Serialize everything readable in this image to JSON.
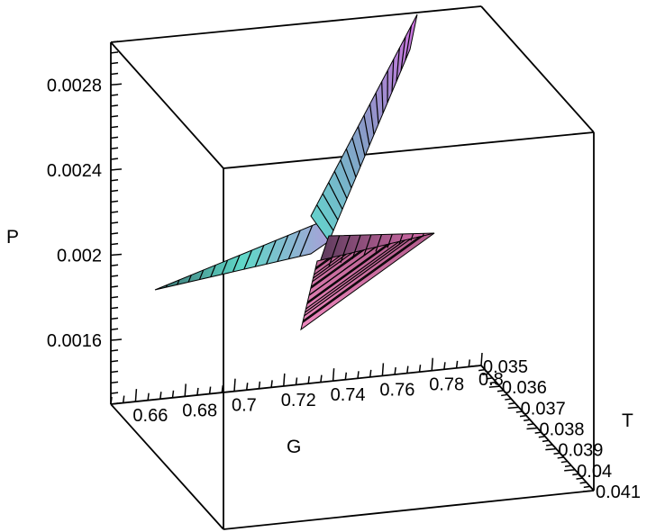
{
  "chart_data": {
    "type": "surface",
    "title": "",
    "xlabel": "G",
    "ylabel": "T",
    "zlabel": "P",
    "xlim": [
      0.65,
      0.8
    ],
    "ylim": [
      0.035,
      0.041
    ],
    "zlim": [
      0.0013,
      0.003
    ],
    "x_ticks": [
      "0.66",
      "0.68",
      "0.7",
      "0.72",
      "0.74",
      "0.76",
      "0.78",
      "0.8"
    ],
    "y_ticks": [
      "0.035",
      "0.036",
      "0.037",
      "0.038",
      "0.039",
      "0.04",
      "0.041"
    ],
    "z_ticks": [
      "0.0016",
      "0.002",
      "0.0024",
      "0.0028"
    ],
    "surface_colors": [
      "#40e0d0",
      "#ff69b4",
      "#e066ff",
      "#9a8cc0"
    ],
    "box": true,
    "grid": false
  }
}
